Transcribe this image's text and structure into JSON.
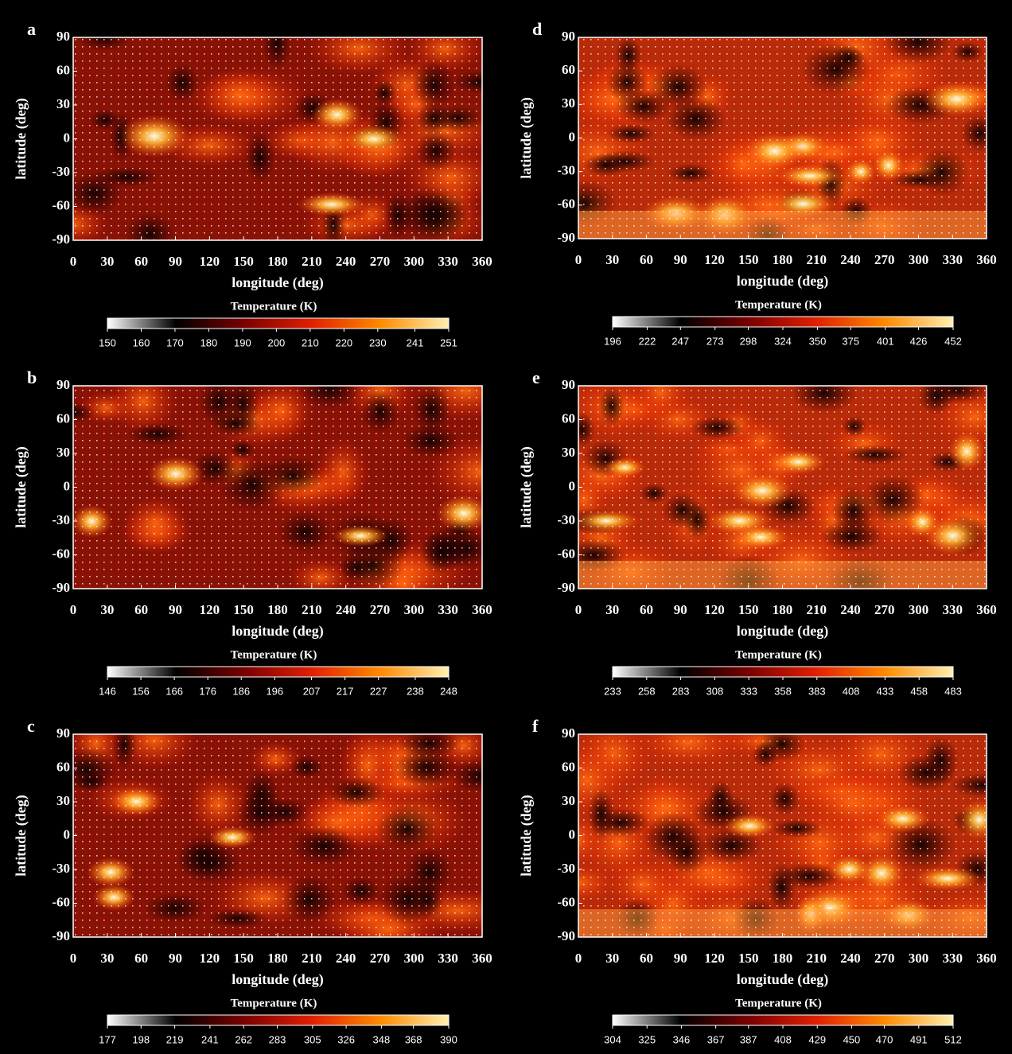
{
  "chart_data": [
    {
      "type": "heatmap",
      "panel": "a",
      "xlabel": "longitude (deg)",
      "ylabel": "latitude (deg)",
      "xlim": [
        0,
        360
      ],
      "xticks": [
        0,
        30,
        60,
        90,
        120,
        150,
        180,
        210,
        240,
        270,
        300,
        330,
        360
      ],
      "ylim": [
        -90,
        90
      ],
      "yticks": [
        -90,
        -60,
        -30,
        0,
        30,
        60,
        90
      ],
      "colorbar_label": "Temperature (K)",
      "colorbar_ticks": [
        150,
        160,
        170,
        180,
        190,
        200,
        210,
        220,
        230,
        241,
        251
      ],
      "colormap": [
        "#ffffff",
        "#000000",
        "#7a0000",
        "#e02000",
        "#ff8a00",
        "#fff0b0"
      ]
    },
    {
      "type": "heatmap",
      "panel": "b",
      "xlabel": "longitude (deg)",
      "ylabel": "latitude (deg)",
      "xlim": [
        0,
        360
      ],
      "xticks": [
        0,
        30,
        60,
        90,
        120,
        150,
        180,
        210,
        240,
        270,
        300,
        330,
        360
      ],
      "ylim": [
        -90,
        90
      ],
      "yticks": [
        -90,
        -60,
        -30,
        0,
        30,
        60,
        90
      ],
      "colorbar_label": "Temperature (K)",
      "colorbar_ticks": [
        146,
        156,
        166,
        176,
        186,
        196,
        207,
        217,
        227,
        238,
        248
      ],
      "colormap": [
        "#ffffff",
        "#000000",
        "#7a0000",
        "#e02000",
        "#ff8a00",
        "#fff0b0"
      ]
    },
    {
      "type": "heatmap",
      "panel": "c",
      "xlabel": "longitude (deg)",
      "ylabel": "latitude (deg)",
      "xlim": [
        0,
        360
      ],
      "xticks": [
        0,
        30,
        60,
        90,
        120,
        150,
        180,
        210,
        240,
        270,
        300,
        330,
        360
      ],
      "ylim": [
        -90,
        90
      ],
      "yticks": [
        -90,
        -60,
        -30,
        0,
        30,
        60,
        90
      ],
      "colorbar_label": "Temperature (K)",
      "colorbar_ticks": [
        177,
        198,
        219,
        241,
        262,
        283,
        305,
        326,
        348,
        368,
        390
      ],
      "colormap": [
        "#ffffff",
        "#000000",
        "#7a0000",
        "#e02000",
        "#ff8a00",
        "#fff0b0"
      ]
    },
    {
      "type": "heatmap",
      "panel": "d",
      "xlabel": "longitude (deg)",
      "ylabel": "latitude (deg)",
      "xlim": [
        0,
        360
      ],
      "xticks": [
        0,
        30,
        60,
        90,
        120,
        150,
        180,
        210,
        240,
        270,
        300,
        330,
        360
      ],
      "ylim": [
        -90,
        90
      ],
      "yticks": [
        -90,
        -60,
        -30,
        0,
        30,
        60,
        90
      ],
      "colorbar_label": "Temperature (K)",
      "colorbar_ticks": [
        196,
        222,
        247,
        273,
        298,
        324,
        350,
        375,
        401,
        426,
        452
      ],
      "colormap": [
        "#ffffff",
        "#000000",
        "#7a0000",
        "#e02000",
        "#ff8a00",
        "#fff0b0"
      ]
    },
    {
      "type": "heatmap",
      "panel": "e",
      "xlabel": "longitude (deg)",
      "ylabel": "latitude (deg)",
      "xlim": [
        0,
        360
      ],
      "xticks": [
        0,
        30,
        60,
        90,
        120,
        150,
        180,
        210,
        240,
        270,
        300,
        330,
        360
      ],
      "ylim": [
        -90,
        90
      ],
      "yticks": [
        -90,
        -60,
        -30,
        0,
        30,
        60,
        90
      ],
      "colorbar_label": "Temperature (K)",
      "colorbar_ticks": [
        233,
        258,
        283,
        308,
        333,
        358,
        383,
        408,
        433,
        458,
        483
      ],
      "colormap": [
        "#ffffff",
        "#000000",
        "#7a0000",
        "#e02000",
        "#ff8a00",
        "#fff0b0"
      ]
    },
    {
      "type": "heatmap",
      "panel": "f",
      "xlabel": "longitude (deg)",
      "ylabel": "latitude (deg)",
      "xlim": [
        0,
        360
      ],
      "xticks": [
        0,
        30,
        60,
        90,
        120,
        150,
        180,
        210,
        240,
        270,
        300,
        330,
        360
      ],
      "ylim": [
        -90,
        90
      ],
      "yticks": [
        -90,
        -60,
        -30,
        0,
        30,
        60,
        90
      ],
      "colorbar_label": "Temperature (K)",
      "colorbar_ticks": [
        304,
        325,
        346,
        367,
        387,
        408,
        429,
        450,
        470,
        491,
        512
      ],
      "colormap": [
        "#ffffff",
        "#000000",
        "#7a0000",
        "#e02000",
        "#ff8a00",
        "#fff0b0"
      ]
    }
  ]
}
